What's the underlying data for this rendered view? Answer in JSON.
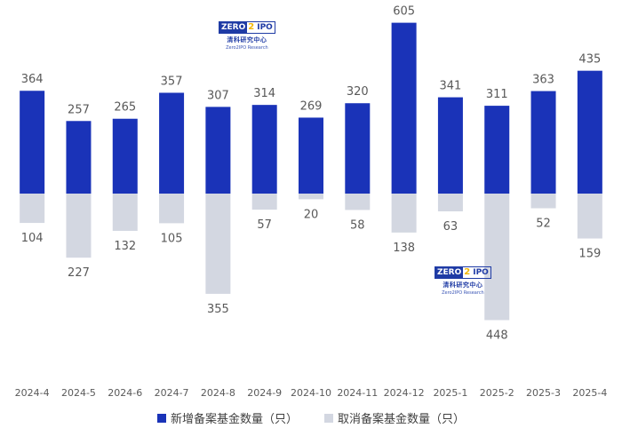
{
  "chart_data": {
    "type": "bar",
    "categories": [
      "2024-4",
      "2024-5",
      "2024-6",
      "2024-7",
      "2024-8",
      "2024-9",
      "2024-10",
      "2024-11",
      "2024-12",
      "2025-1",
      "2025-2",
      "2025-3",
      "2025-4"
    ],
    "series": [
      {
        "name": "新增备案基金数量（只）",
        "color": "#1a33b8",
        "direction": "up",
        "values": [
          364,
          257,
          265,
          357,
          307,
          314,
          269,
          320,
          605,
          341,
          311,
          363,
          435
        ]
      },
      {
        "name": "取消备案基金数量（只）",
        "color": "#d3d7e1",
        "direction": "down",
        "values": [
          104,
          227,
          132,
          105,
          355,
          57,
          20,
          58,
          138,
          63,
          448,
          52,
          159
        ]
      }
    ],
    "grid": false,
    "legend_position": "bottom"
  },
  "watermarks": [
    {
      "badge_left": "ZERO",
      "badge_mid": "2",
      "badge_right": "IPO",
      "cn": "清科研究中心",
      "en": "Zero2IPO Research"
    },
    {
      "badge_left": "ZERO",
      "badge_mid": "2",
      "badge_right": "IPO",
      "cn": "清科研究中心",
      "en": "Zero2IPO Research"
    }
  ]
}
